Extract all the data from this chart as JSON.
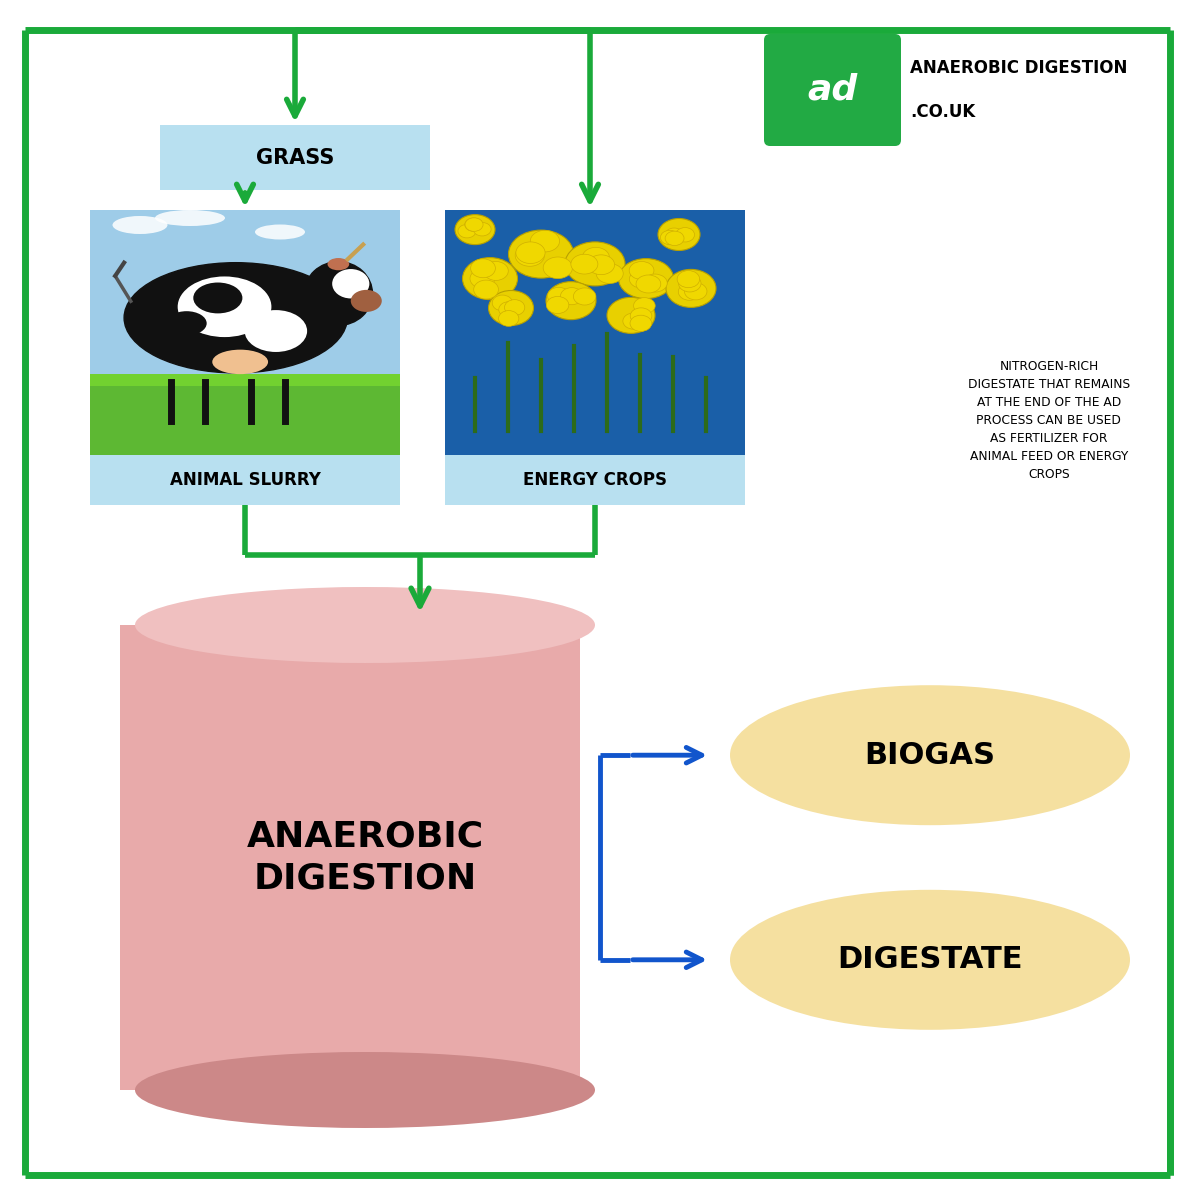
{
  "green": "#1aaa3a",
  "blue": "#1155cc",
  "grass_box_color": "#b8e0f0",
  "output_ellipse_color": "#f5e0a0",
  "digester_color": "#e8aaaa",
  "digester_dark": "#cc8888",
  "logo_green": "#22aa44",
  "grass_label": "GRASS",
  "slurry_label": "ANIMAL SLURRY",
  "energy_label": "ENERGY CROPS",
  "digester_label": "ANAEROBIC\nDIGESTION",
  "biogas_label": "BIOGAS",
  "digestate_label": "DIGESTATE",
  "logo_text": "ad",
  "logo_line1": "ANAEROBIC DIGESTION",
  "logo_line2": ".CO.UK",
  "fertilizer_text": "NITROGEN-RICH\nDIGESTATE THAT REMAINS\nAT THE END OF THE AD\nPROCESS CAN BE USED\nAS FERTILIZER FOR\nANIMAL FEED OR ENERGY\nCROPS",
  "bg_color": "#ffffff",
  "lw_border": 5,
  "lw_arrow": 4
}
